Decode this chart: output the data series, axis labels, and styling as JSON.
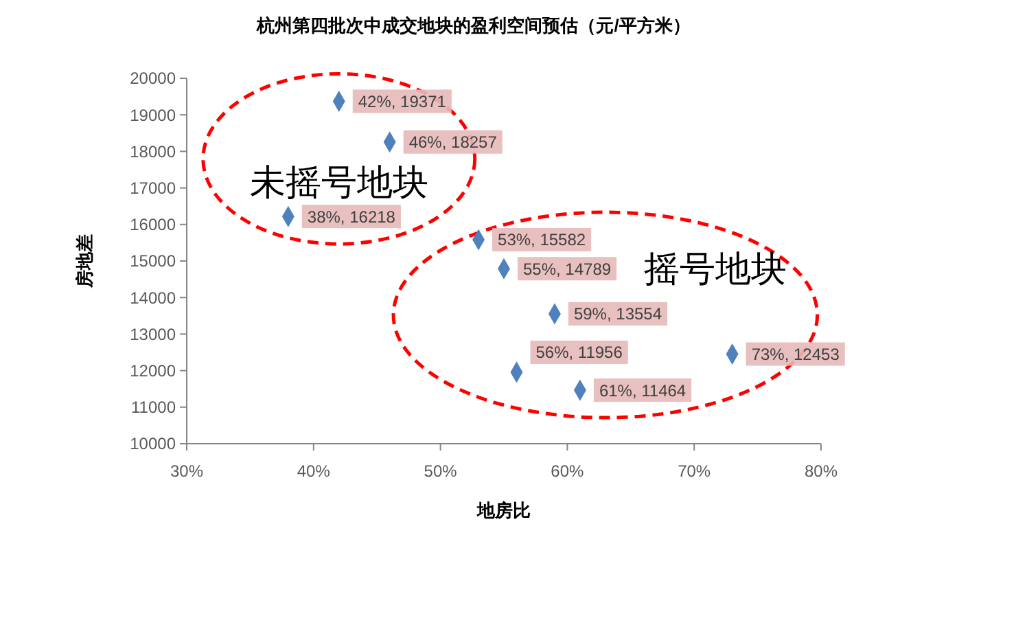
{
  "chart_data": {
    "type": "scatter",
    "title": "杭州第四批次中成交地块的盈利空间预估（元/平方米）",
    "xlabel": "地房比",
    "ylabel": "房地差",
    "xlim": [
      30,
      80
    ],
    "xticks": [
      {
        "value": 30,
        "label": "30%"
      },
      {
        "value": 40,
        "label": "40%"
      },
      {
        "value": 50,
        "label": "50%"
      },
      {
        "value": 60,
        "label": "60%"
      },
      {
        "value": 70,
        "label": "70%"
      },
      {
        "value": 80,
        "label": "80%"
      }
    ],
    "ylim": [
      10000,
      20000
    ],
    "yticks": [
      10000,
      11000,
      12000,
      13000,
      14000,
      15000,
      16000,
      17000,
      18000,
      19000,
      20000
    ],
    "marker": "diamond",
    "series": [
      {
        "name": "未摇号地块",
        "color": "#4f81bd",
        "x": [
          42,
          46,
          38
        ],
        "values": [
          19371,
          18257,
          16218
        ],
        "value_labels": [
          "42%, 19371",
          "46%, 18257",
          "38%, 16218"
        ]
      },
      {
        "name": "摇号地块",
        "color": "#4f81bd",
        "x": [
          53,
          55,
          59,
          56,
          61,
          73
        ],
        "values": [
          15582,
          14789,
          13554,
          11956,
          11464,
          12453
        ],
        "value_labels": [
          "53%, 15582",
          "55%, 14789",
          "59%, 13554",
          "56%, 11956",
          "61%, 11464",
          "73%, 12453"
        ]
      }
    ]
  }
}
